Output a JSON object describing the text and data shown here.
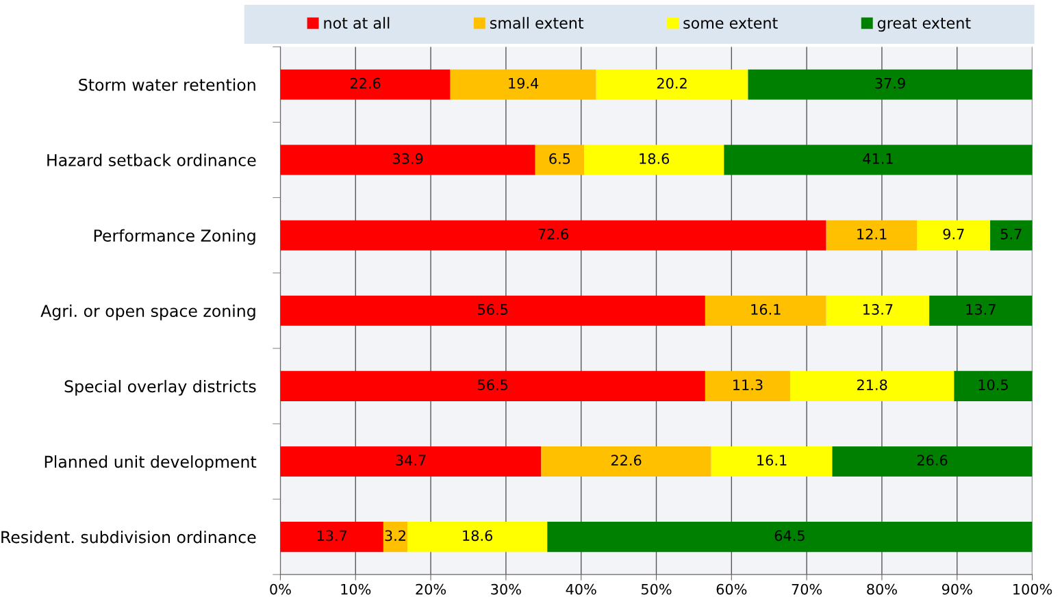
{
  "chart_data": {
    "type": "bar",
    "orientation": "horizontal",
    "stacked": true,
    "data_labels": true,
    "categories": [
      "Storm water retention",
      "Hazard setback ordinance",
      "Performance Zoning",
      "Agri. or open space zoning",
      "Special overlay districts",
      "Planned unit development",
      "Resident. subdivision ordinance"
    ],
    "series": [
      {
        "name": "not at all",
        "color": "#ff0000",
        "values": [
          22.6,
          33.9,
          72.6,
          56.5,
          56.5,
          34.7,
          13.7
        ]
      },
      {
        "name": "small extent",
        "color": "#ffc000",
        "values": [
          19.4,
          6.5,
          12.1,
          16.1,
          11.3,
          22.6,
          3.2
        ]
      },
      {
        "name": "some extent",
        "color": "#ffff00",
        "values": [
          20.2,
          18.6,
          9.7,
          13.7,
          21.8,
          16.1,
          18.6
        ]
      },
      {
        "name": "great extent",
        "color": "#008000",
        "values": [
          37.9,
          41.1,
          5.7,
          13.7,
          10.5,
          26.6,
          64.5
        ]
      }
    ],
    "xlim": [
      0,
      100
    ],
    "xticks": [
      {
        "value": 0,
        "label": "0%"
      },
      {
        "value": 10,
        "label": "10%"
      },
      {
        "value": 20,
        "label": "20%"
      },
      {
        "value": 30,
        "label": "30%"
      },
      {
        "value": 40,
        "label": "40%"
      },
      {
        "value": 50,
        "label": "50%"
      },
      {
        "value": 60,
        "label": "60%"
      },
      {
        "value": 70,
        "label": "70%"
      },
      {
        "value": 80,
        "label": "80%"
      },
      {
        "value": 90,
        "label": "90%"
      },
      {
        "value": 100,
        "label": "100%"
      }
    ],
    "grid": "x",
    "legend": "top"
  }
}
